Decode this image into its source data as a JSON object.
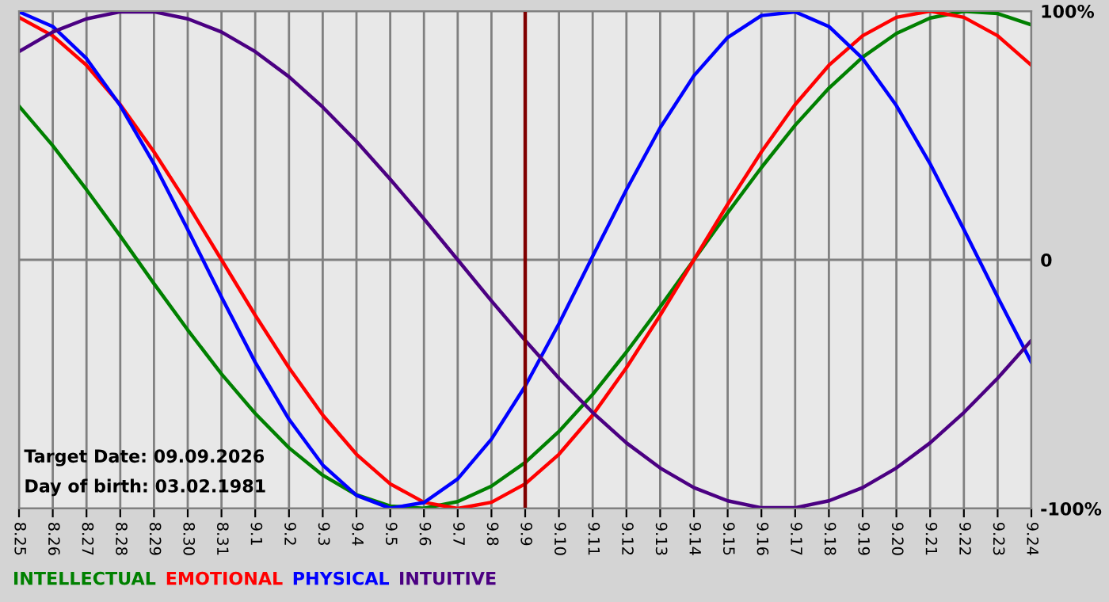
{
  "chart_data": {
    "type": "line",
    "categories": [
      "8.25",
      "8.26",
      "8.27",
      "8.28",
      "8.29",
      "8.30",
      "8.31",
      "9.1",
      "9.2",
      "9.3",
      "9.4",
      "9.5",
      "9.6",
      "9.7",
      "9.8",
      "9.9",
      "9.10",
      "9.11",
      "9.12",
      "9.13",
      "9.14",
      "9.15",
      "9.16",
      "9.17",
      "9.18",
      "9.19",
      "9.20",
      "9.21",
      "9.22",
      "9.23",
      "9.24"
    ],
    "series": [
      {
        "name": "INTELLECTUAL",
        "color": "#008000",
        "values": [
          61.8,
          45.9,
          28.2,
          9.6,
          -9.6,
          -28.2,
          -45.9,
          -61.8,
          -75.6,
          -86.6,
          -94.5,
          -99.0,
          -99.9,
          -97.2,
          -91.0,
          -81.5,
          -69.0,
          -54.1,
          -37.1,
          -18.9,
          0,
          18.9,
          37.1,
          54.1,
          69.0,
          81.5,
          91.0,
          97.2,
          99.9,
          99.0,
          94.5
        ]
      },
      {
        "name": "EMOTIONAL",
        "color": "#ff0000",
        "values": [
          97.5,
          90.1,
          78.2,
          62.4,
          43.4,
          22.3,
          0,
          -22.3,
          -43.4,
          -62.4,
          -78.2,
          -90.1,
          -97.5,
          -100,
          -97.5,
          -90.1,
          -78.2,
          -62.4,
          -43.4,
          -22.3,
          0,
          22.3,
          43.4,
          62.4,
          78.2,
          90.1,
          97.5,
          100,
          97.5,
          90.1,
          78.2
        ]
      },
      {
        "name": "PHYSICAL",
        "color": "#0000ff",
        "values": [
          99.7,
          93.8,
          80.9,
          62.0,
          38.6,
          12.2,
          -15.0,
          -41.2,
          -64.1,
          -82.5,
          -94.7,
          -99.9,
          -97.6,
          -88.1,
          -72.1,
          -50.8,
          -25.7,
          1.4,
          28.2,
          53.1,
          74.0,
          89.4,
          98.2,
          99.7,
          93.8,
          80.9,
          62.0,
          38.6,
          12.2,
          -15.0,
          -41.2
        ]
      },
      {
        "name": "INTUITIVE",
        "color": "#4b0082",
        "values": [
          83.7,
          91.6,
          96.9,
          99.7,
          99.7,
          96.9,
          91.6,
          83.7,
          73.6,
          61.4,
          47.6,
          32.4,
          16.5,
          0,
          -16.5,
          -32.4,
          -47.6,
          -61.4,
          -73.6,
          -83.7,
          -91.6,
          -96.9,
          -99.7,
          -99.7,
          -96.9,
          -91.6,
          -83.7,
          -73.6,
          -61.4,
          -47.6,
          -32.4
        ]
      }
    ],
    "ylim": [
      -100,
      100
    ],
    "yticks": [
      {
        "value": 100,
        "label": "100%"
      },
      0,
      {
        "value": -100,
        "label": "-100%"
      }
    ],
    "ref_lines": [
      {
        "axis": "x",
        "value": "9.9",
        "color": "#800000"
      }
    ],
    "annotations": [
      "Target Date: 09.09.2026",
      "Day of birth: 03.02.1981"
    ],
    "grid": true,
    "legend": "bottom"
  }
}
